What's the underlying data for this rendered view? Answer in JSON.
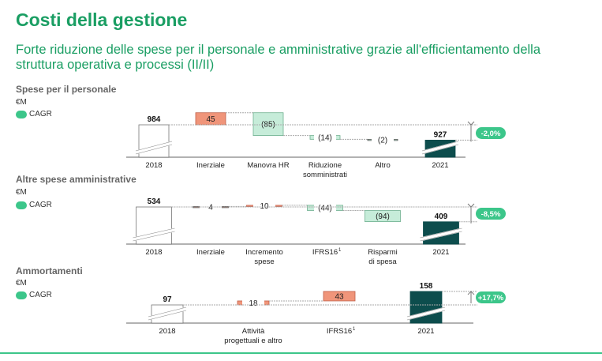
{
  "title": "Costi della gestione",
  "subtitle": "Forte riduzione delle spese per il personale e amministrative grazie all'efficientamento della struttura operativa e processi (II/II)",
  "colors": {
    "accent": "#1a9e63",
    "increase": "#f0957a",
    "decrease": "#c6ecd9",
    "final": "#0d4d4d",
    "badge": "#3cc68a"
  },
  "chart_data": [
    {
      "type": "waterfall",
      "title": "Spese per il personale",
      "unit": "€M",
      "legend": "CAGR",
      "cagr": "-2,0%",
      "direction": "down",
      "steps": [
        {
          "label": [
            "2018"
          ],
          "value": 984,
          "kind": "start",
          "text": "984"
        },
        {
          "label": [
            "Inerziale"
          ],
          "value": 45,
          "kind": "up",
          "text": "45"
        },
        {
          "label": [
            "Manovra HR"
          ],
          "value": -85,
          "kind": "down",
          "text": "(85)"
        },
        {
          "label": [
            "Riduzione",
            "somministrati"
          ],
          "value": -14,
          "kind": "down",
          "text": "(14)"
        },
        {
          "label": [
            "Altro"
          ],
          "value": -2,
          "kind": "down",
          "text": "(2)"
        },
        {
          "label": [
            "2021"
          ],
          "value": 927,
          "kind": "end",
          "text": "927"
        }
      ]
    },
    {
      "type": "waterfall",
      "title": "Altre spese amministrative",
      "unit": "€M",
      "legend": "CAGR",
      "cagr": "-8,5%",
      "direction": "down",
      "steps": [
        {
          "label": [
            "2018"
          ],
          "value": 534,
          "kind": "start",
          "text": "534"
        },
        {
          "label": [
            "Inerziale"
          ],
          "value": 4,
          "kind": "up",
          "text": "4"
        },
        {
          "label": [
            "Incremento",
            "spese"
          ],
          "value": 10,
          "kind": "up",
          "text": "10"
        },
        {
          "label": [
            "IFRS16"
          ],
          "footnote": "1",
          "value": -44,
          "kind": "down",
          "text": "(44)"
        },
        {
          "label": [
            "Risparmi",
            "di spesa"
          ],
          "value": -94,
          "kind": "down",
          "text": "(94)"
        },
        {
          "label": [
            "2021"
          ],
          "value": 409,
          "kind": "end",
          "text": "409"
        }
      ]
    },
    {
      "type": "waterfall",
      "title": "Ammortamenti",
      "unit": "€M",
      "legend": "CAGR",
      "cagr": "+17,7%",
      "direction": "up",
      "steps": [
        {
          "label": [
            "2018"
          ],
          "value": 97,
          "kind": "start",
          "text": "97"
        },
        {
          "label": [
            "Attività",
            "progettuali e altro"
          ],
          "value": 18,
          "kind": "up",
          "text": "18"
        },
        {
          "label": [
            "IFRS16"
          ],
          "footnote": "1",
          "value": 43,
          "kind": "up",
          "text": "43"
        },
        {
          "label": [
            "2021"
          ],
          "value": 158,
          "kind": "end",
          "text": "158"
        }
      ]
    }
  ]
}
